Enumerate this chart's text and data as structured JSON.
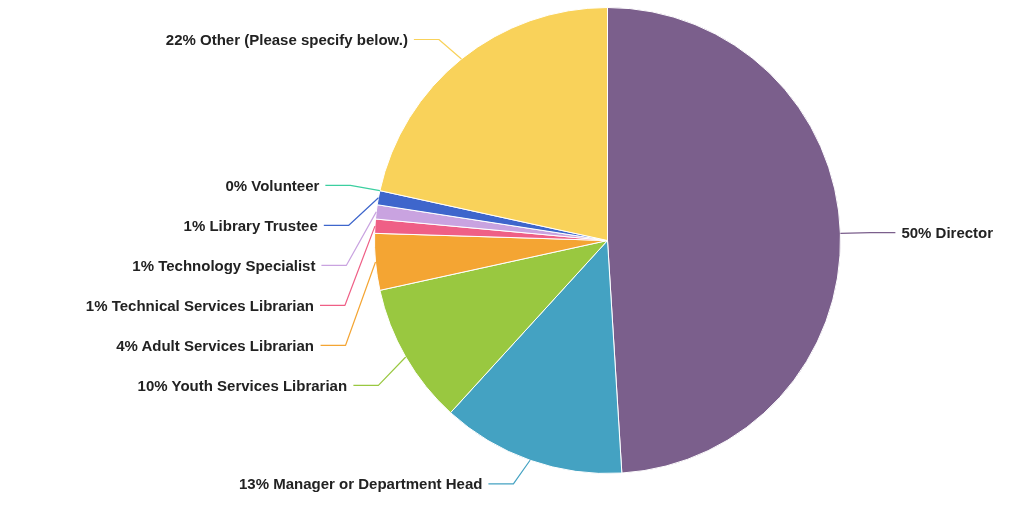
{
  "chart_data": {
    "type": "pie",
    "categories": [
      "Director",
      "Manager or Department Head",
      "Youth Services Librarian",
      "Adult Services Librarian",
      "Technical Services Librarian",
      "Technology Specialist",
      "Library Trustee",
      "Volunteer",
      "Other (Please specify below.)"
    ],
    "values": [
      50,
      13,
      10,
      4,
      1,
      1,
      1,
      0,
      22
    ],
    "value_labels": [
      "50%",
      "13%",
      "10%",
      "4%",
      "1%",
      "1%",
      "1%",
      "0%",
      "22%"
    ],
    "colors": [
      "#7b5f8c",
      "#44a2c2",
      "#99c840",
      "#f4a533",
      "#ef5f86",
      "#c9a3e0",
      "#3e66cc",
      "#3ccfa0",
      "#f9d25a"
    ]
  }
}
